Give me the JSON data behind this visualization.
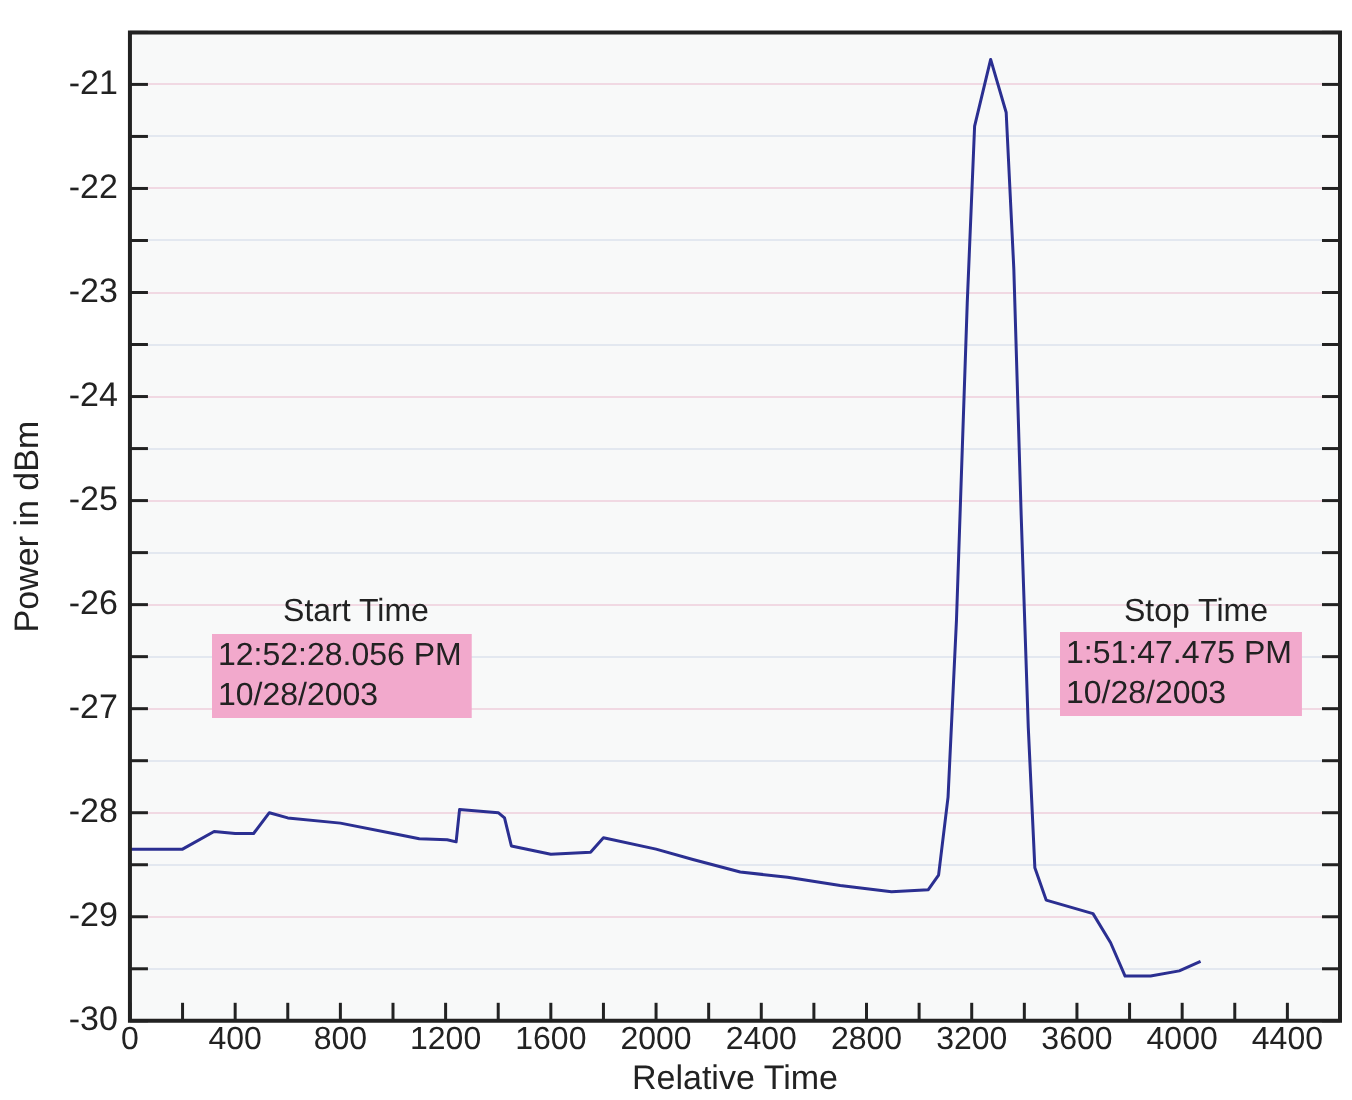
{
  "chart_data": {
    "type": "line",
    "xlabel": "Relative Time",
    "ylabel": "Power in dBm",
    "x": [
      0,
      200,
      320,
      400,
      470,
      530,
      600,
      800,
      1000,
      1100,
      1206,
      1240,
      1253,
      1400,
      1424,
      1450,
      1600,
      1751,
      1800,
      2000,
      2140,
      2320,
      2500,
      2700,
      2895,
      3035,
      3074,
      3110,
      3142,
      3183,
      3211,
      3272,
      3331,
      3360,
      3388,
      3415,
      3440,
      3483,
      3661,
      3728,
      3783,
      3880,
      3989,
      4070
    ],
    "series": [
      {
        "color": "#2b2f91",
        "values": [
          -28.35,
          -28.35,
          -28.18,
          -28.2,
          -28.2,
          -28.0,
          -28.05,
          -28.1,
          -28.2,
          -28.25,
          -28.26,
          -28.28,
          -27.97,
          -28.0,
          -28.05,
          -28.32,
          -28.4,
          -28.38,
          -28.24,
          -28.35,
          -28.45,
          -28.57,
          -28.62,
          -28.7,
          -28.76,
          -28.74,
          -28.6,
          -27.85,
          -26.15,
          -23.1,
          -21.4,
          -20.76,
          -21.27,
          -22.77,
          -25.14,
          -27.18,
          -28.53,
          -28.84,
          -28.97,
          -29.25,
          -29.57,
          -29.57,
          -29.52,
          -29.43
        ]
      }
    ],
    "xlim": [
      0,
      4600
    ],
    "xticks": [
      0,
      {
        "value": 200,
        "label": null
      },
      400,
      {
        "value": 600,
        "label": null
      },
      800,
      {
        "value": 1000,
        "label": null
      },
      1200,
      {
        "value": 1400,
        "label": null
      },
      1600,
      {
        "value": 1800,
        "label": null
      },
      2000,
      {
        "value": 2200,
        "label": null
      },
      2400,
      {
        "value": 2600,
        "label": null
      },
      2800,
      {
        "value": 3000,
        "label": null
      },
      3200,
      {
        "value": 3400,
        "label": null
      },
      3600,
      {
        "value": 3800,
        "label": null
      },
      4000,
      {
        "value": 4200,
        "label": null
      },
      4400,
      {
        "value": 4600,
        "label": null
      }
    ],
    "ylim": [
      -30,
      -20.5
    ],
    "yticks": [
      -30,
      {
        "value": -29.5,
        "label": null
      },
      -29,
      {
        "value": -28.5,
        "label": null
      },
      -28,
      {
        "value": -27.5,
        "label": null
      },
      -27,
      {
        "value": -26.5,
        "label": null
      },
      -26,
      {
        "value": -25.5,
        "label": null
      },
      -25,
      {
        "value": -24.5,
        "label": null
      },
      -24,
      {
        "value": -23.5,
        "label": null
      },
      -23,
      {
        "value": -22.5,
        "label": null
      },
      -22,
      {
        "value": -21.5,
        "label": null
      },
      -21,
      {
        "value": -20.5,
        "label": null
      }
    ],
    "grid": "y",
    "legend": false,
    "marker": "none",
    "line_style": "solid",
    "annotations": [
      "Start Time",
      "12:52:28.056 PM\n10/28/2003",
      "Stop Time",
      "1:51:47.475 PM\n10/28/2003"
    ]
  }
}
